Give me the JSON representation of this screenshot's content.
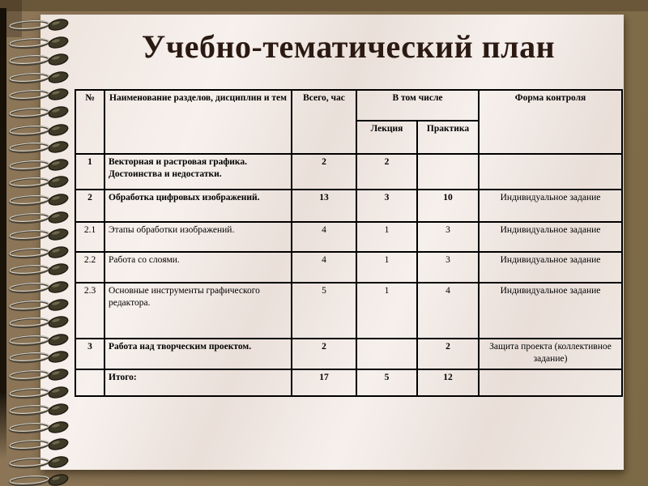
{
  "title": "Учебно-тематический план",
  "table": {
    "headers": {
      "num": "№",
      "name": "Наименование разделов, дисциплин и тем",
      "total": "Всего, час",
      "including": "В том числе",
      "lecture": "Лекция",
      "practice": "Практика",
      "control": "Форма контроля"
    },
    "rows": [
      {
        "num": "1",
        "name": "Векторная и растровая графика. Достоинства и недостатки.",
        "total": "2",
        "lecture": "2",
        "practice": "",
        "control": ""
      },
      {
        "num": "2",
        "name": "Обработка цифровых изображений.",
        "total": "13",
        "lecture": "3",
        "practice": "10",
        "control": "Индивидуальное задание"
      },
      {
        "num": "2.1",
        "name": "Этапы обработки изображений.",
        "total": "4",
        "lecture": "1",
        "practice": "3",
        "control": "Индивидуальное задание"
      },
      {
        "num": "2.2",
        "name": "Работа со слоями.",
        "total": "4",
        "lecture": "1",
        "practice": "3",
        "control": "Индивидуальное задание"
      },
      {
        "num": "2.3",
        "name": "Основные инструменты графического редактора.",
        "total": "5",
        "lecture": "1",
        "practice": "4",
        "control": "Индивидуальное задание"
      },
      {
        "num": "3",
        "name": "Работа над творческим проектом.",
        "total": "2",
        "lecture": "",
        "practice": "2",
        "control": "Защита проекта (коллективное задание)"
      },
      {
        "num": "",
        "name": "Итого:",
        "total": "17",
        "lecture": "5",
        "practice": "12",
        "control": ""
      }
    ]
  },
  "colors": {
    "background_brown": "#85704f",
    "top_band": "#6a5739",
    "page_cream": "#ece2dc",
    "table_border": "#000000",
    "title_text": "#2b1a12"
  }
}
